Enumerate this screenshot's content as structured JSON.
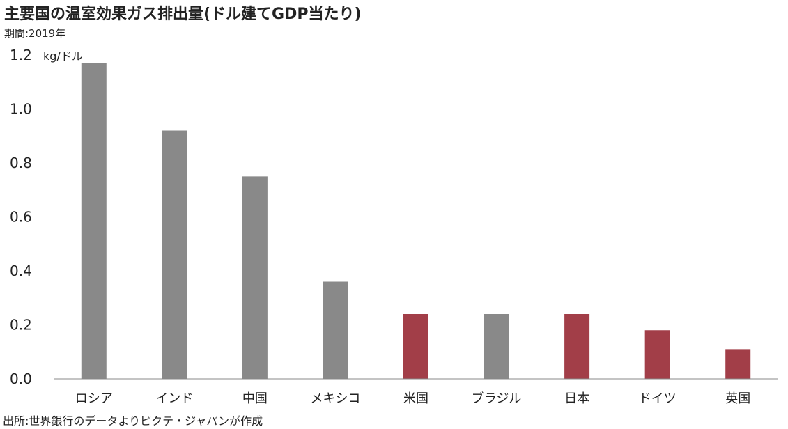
{
  "title": "主要国の温室効果ガス排出量(ドル建てGDP当たり)",
  "period": "期間:2019年",
  "source": "出所:世界銀行のデータよりピクテ・ジャパンが作成",
  "colors": {
    "gray": "#898989",
    "highlight": "#a23e48",
    "axis": "#888888"
  },
  "chart_data": {
    "type": "bar",
    "categories": [
      "ロシア",
      "インド",
      "中国",
      "メキシコ",
      "米国",
      "ブラジル",
      "日本",
      "ドイツ",
      "英国"
    ],
    "values": [
      1.17,
      0.92,
      0.75,
      0.36,
      0.24,
      0.24,
      0.24,
      0.18,
      0.11
    ],
    "highlighted": [
      false,
      false,
      false,
      false,
      true,
      false,
      true,
      true,
      true
    ],
    "yunit": "kg/ドル",
    "ylim": [
      0,
      1.2
    ],
    "yticks": [
      "0.0",
      "0.2",
      "0.4",
      "0.6",
      "0.8",
      "1.0",
      "1.2"
    ],
    "grid": false
  }
}
